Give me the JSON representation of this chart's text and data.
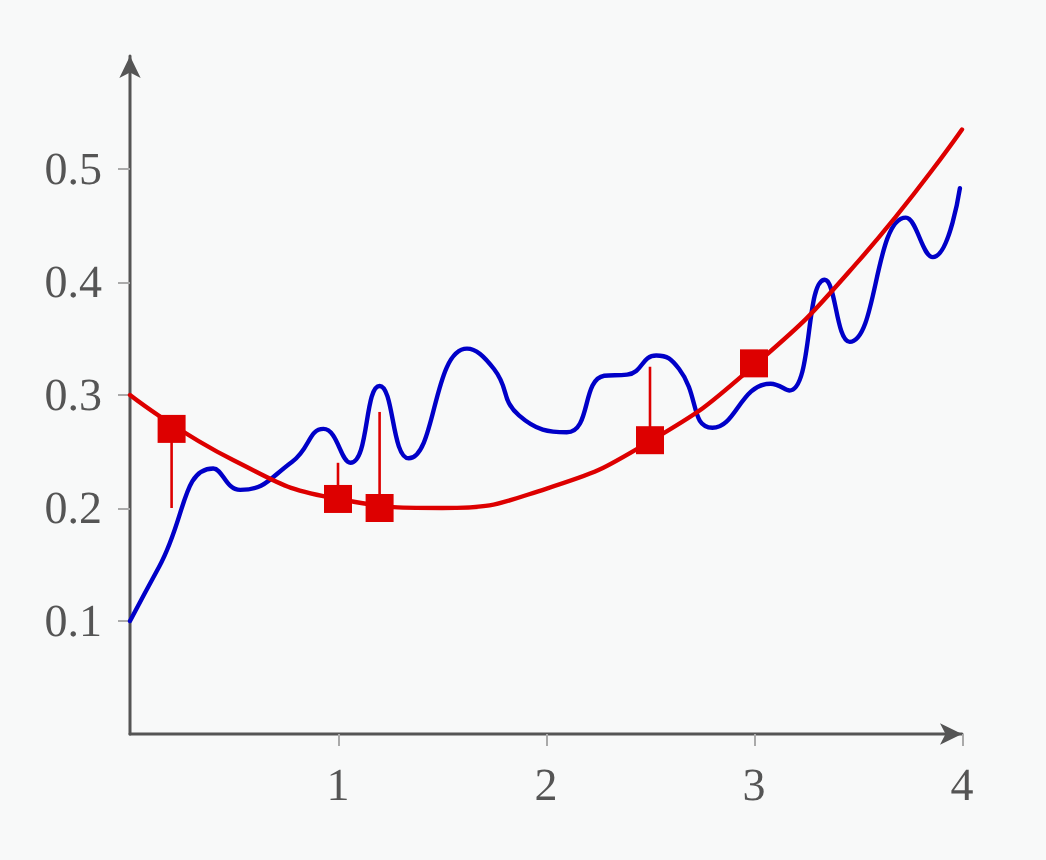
{
  "chart_data": {
    "type": "line",
    "xlim": [
      0,
      4
    ],
    "xticks": [
      1,
      2,
      3,
      4
    ],
    "ylim": [
      0,
      0.6
    ],
    "yticks": [
      0.1,
      0.2,
      0.3,
      0.4,
      0.5
    ],
    "grid": false,
    "series": [
      {
        "color": "#0000c8",
        "marker": "none",
        "line_style": "solid",
        "x": [
          0,
          0.14,
          0.4,
          0.53,
          0.78,
          0.93,
          1.06,
          1.2,
          1.34,
          1.62,
          1.75,
          1.87,
          2.1,
          2.28,
          2.39,
          2.53,
          2.64,
          2.8,
          3.08,
          3.17,
          3.34,
          3.46,
          3.73,
          3.86,
          3.99
        ],
        "values": [
          0.1,
          0.148,
          0.235,
          0.216,
          0.241,
          0.27,
          0.24,
          0.308,
          0.244,
          0.341,
          0.323,
          0.282,
          0.267,
          0.317,
          0.318,
          0.335,
          0.323,
          0.271,
          0.31,
          0.304,
          0.402,
          0.347,
          0.457,
          0.422,
          0.483
        ]
      },
      {
        "color": "#dd0000",
        "marker": "none",
        "line_style": "solid",
        "x": [
          0,
          0.5,
          1,
          1.5,
          2,
          2.5,
          3,
          3.5,
          4
        ],
        "values": [
          0.3,
          0.242,
          0.208,
          0.2,
          0.217,
          0.259,
          0.326,
          0.418,
          0.535
        ]
      },
      {
        "type": "scatter",
        "color": "#dd0000",
        "marker": "square",
        "x": [
          0.2,
          1.0,
          1.2,
          2.5,
          3.0
        ],
        "values": [
          0.27,
          0.208,
          0.2,
          0.26,
          0.328
        ],
        "errors": [
          [
            0.2,
            0.27
          ],
          [
            0.208,
            0.24
          ],
          [
            0.2,
            0.285
          ],
          [
            0.26,
            0.325
          ],
          [
            0.32,
            0.328
          ]
        ]
      }
    ]
  }
}
